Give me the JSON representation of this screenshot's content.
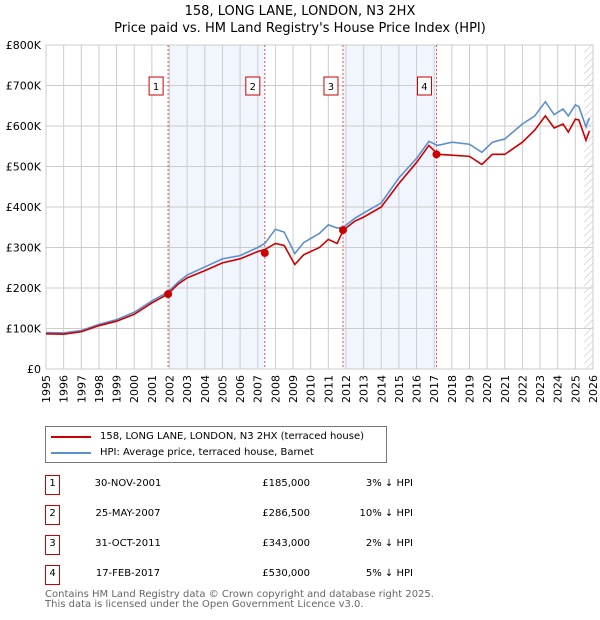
{
  "title": "158, LONG LANE, LONDON, N3 2HX",
  "subtitle": "Price paid vs. HM Land Registry's House Price Index (HPI)",
  "chart_data": {
    "type": "line",
    "title": "158, LONG LANE, LONDON, N3 2HX",
    "subtitle": "Price paid vs. HM Land Registry's House Price Index (HPI)",
    "xlim": [
      1995,
      2026
    ],
    "ylim": [
      0,
      800000
    ],
    "x_ticks": [
      "1995",
      "1996",
      "1997",
      "1998",
      "1999",
      "2000",
      "2001",
      "2002",
      "2003",
      "2004",
      "2005",
      "2006",
      "2007",
      "2008",
      "2009",
      "2010",
      "2011",
      "2012",
      "2013",
      "2014",
      "2015",
      "2016",
      "2017",
      "2018",
      "2019",
      "2020",
      "2021",
      "2022",
      "2023",
      "2024",
      "2025",
      "2026"
    ],
    "y_ticks": [
      {
        "v": 0,
        "label": "£0"
      },
      {
        "v": 100000,
        "label": "£100K"
      },
      {
        "v": 200000,
        "label": "£200K"
      },
      {
        "v": 300000,
        "label": "£300K"
      },
      {
        "v": 400000,
        "label": "£400K"
      },
      {
        "v": 500000,
        "label": "£500K"
      },
      {
        "v": 600000,
        "label": "£600K"
      },
      {
        "v": 700000,
        "label": "£700K"
      },
      {
        "v": 800000,
        "label": "£800K"
      }
    ],
    "grid": true,
    "legend_placement": "below",
    "series": [
      {
        "name": "158, LONG LANE, LONDON, N3 2HX (terraced house)",
        "color": "#cc0000",
        "x": [
          1995,
          1996,
          1997,
          1998,
          1999,
          2000,
          2001,
          2001.9,
          2002.5,
          2003,
          2004,
          2005,
          2006,
          2007,
          2007.4,
          2008,
          2008.5,
          2009.1,
          2009.6,
          2010.5,
          2011,
          2011.5,
          2011.85,
          2012.5,
          2013,
          2014,
          2015,
          2016,
          2016.7,
          2017.2,
          2018,
          2019,
          2019.7,
          2020.3,
          2021,
          2022,
          2022.7,
          2023.3,
          2023.8,
          2024.3,
          2024.6,
          2025,
          2025.2,
          2025.6,
          2025.8
        ],
        "y": [
          87000,
          86000,
          92000,
          107000,
          118000,
          135000,
          163000,
          185000,
          210000,
          225000,
          243000,
          262000,
          272000,
          290000,
          295000,
          310000,
          305000,
          258000,
          282000,
          300000,
          320000,
          310000,
          343000,
          365000,
          375000,
          400000,
          458000,
          510000,
          552000,
          530000,
          528000,
          525000,
          505000,
          530000,
          530000,
          560000,
          590000,
          625000,
          595000,
          605000,
          585000,
          617000,
          615000,
          565000,
          588000
        ]
      },
      {
        "name": "HPI: Average price, terraced house, Barnet",
        "color": "#5b8fd0",
        "x": [
          1995,
          1996,
          1997,
          1998,
          1999,
          2000,
          2001,
          2001.9,
          2002.5,
          2003,
          2004,
          2005,
          2006,
          2007,
          2007.4,
          2008,
          2008.5,
          2009.1,
          2009.6,
          2010.5,
          2011,
          2011.5,
          2011.85,
          2012.5,
          2013,
          2014,
          2015,
          2016,
          2016.7,
          2017.2,
          2018,
          2019,
          2019.7,
          2020.3,
          2021,
          2022,
          2022.7,
          2023.3,
          2023.8,
          2024.3,
          2024.6,
          2025,
          2025.2,
          2025.6,
          2025.8
        ],
        "y": [
          90000,
          89000,
          95000,
          110000,
          122000,
          140000,
          168000,
          190000,
          215000,
          232000,
          252000,
          272000,
          280000,
          300000,
          310000,
          345000,
          338000,
          285000,
          312000,
          335000,
          356000,
          348000,
          350000,
          372000,
          385000,
          410000,
          472000,
          520000,
          562000,
          552000,
          560000,
          555000,
          535000,
          560000,
          568000,
          605000,
          625000,
          660000,
          628000,
          642000,
          625000,
          652000,
          648000,
          598000,
          620000
        ]
      }
    ],
    "sales": [
      {
        "n": "1",
        "x": 2001.92,
        "y": 185000,
        "date": "30-NOV-2001",
        "price": "£185,000",
        "hpi": "3% ↓ HPI"
      },
      {
        "n": "2",
        "x": 2007.4,
        "y": 286500,
        "date": "25-MAY-2007",
        "price": "£286,500",
        "hpi": "10% ↓ HPI"
      },
      {
        "n": "3",
        "x": 2011.83,
        "y": 343000,
        "date": "31-OCT-2011",
        "price": "£343,000",
        "hpi": "2% ↓ HPI"
      },
      {
        "n": "4",
        "x": 2017.13,
        "y": 530000,
        "date": "17-FEB-2017",
        "price": "£530,000",
        "hpi": "5% ↓ HPI"
      }
    ],
    "shaded_ranges": [
      [
        2001.92,
        2007.4
      ],
      [
        2011.83,
        2017.13
      ]
    ],
    "forecast_from": 2025.5
  },
  "footer": [
    "Contains HM Land Registry data © Crown copyright and database right 2025.",
    "This data is licensed under the Open Government Licence v3.0."
  ]
}
